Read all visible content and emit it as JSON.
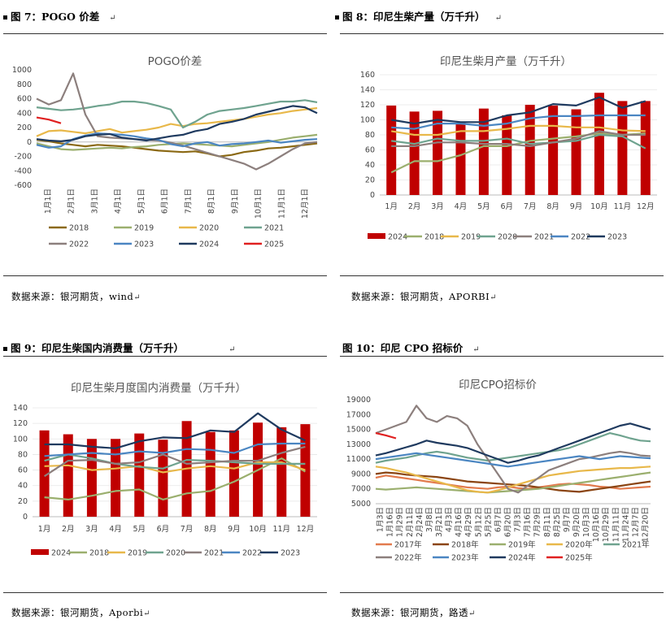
{
  "figures": [
    {
      "title": "图 7：POGO 价差",
      "source": "数据来源：银河期货，wind"
    },
    {
      "title": "图 8：印尼生柴产量（万千升）",
      "source": "数据来源：银河期货，APORBI"
    },
    {
      "title": "图 9：印尼生柴国内消费量（万千升）",
      "source": "数据来源：银河期货，Aporbi"
    },
    {
      "title": "图 10：印尼 CPO 招标价",
      "source": "数据来源：银河期货，路透"
    }
  ],
  "para_mark": "↵",
  "chart_data": [
    {
      "type": "line",
      "title": "POGO价差",
      "ylim": [
        -600,
        1000
      ],
      "yticks": [
        "1000",
        "800",
        "600",
        "400",
        "200",
        "0",
        "-200",
        "-400",
        "-600"
      ],
      "xticks": [
        "1月1日",
        "2月1日",
        "3月1日",
        "4月1日",
        "5月1日",
        "6月1日",
        "7月1日",
        "8月1日",
        "9月1日",
        "10月1日",
        "11月1日",
        "12月1日"
      ],
      "series": [
        {
          "name": "2018",
          "color": "#8B6914",
          "values": [
            30,
            10,
            -20,
            -40,
            -60,
            -40,
            -50,
            -60,
            -80,
            -100,
            -120,
            -130,
            -140,
            -130,
            -160,
            -200,
            -180,
            -140,
            -120,
            -90,
            -80,
            -60,
            -40,
            -20
          ]
        },
        {
          "name": "2019",
          "color": "#9BAF6E",
          "values": [
            -20,
            -60,
            -100,
            -110,
            -100,
            -90,
            -80,
            -90,
            -70,
            -60,
            -40,
            -30,
            -20,
            -30,
            -40,
            -50,
            -60,
            -40,
            -20,
            0,
            30,
            60,
            80,
            100
          ]
        },
        {
          "name": "2020",
          "color": "#E8B84A",
          "values": [
            80,
            150,
            160,
            140,
            120,
            150,
            180,
            130,
            150,
            170,
            200,
            250,
            220,
            250,
            260,
            280,
            300,
            320,
            350,
            380,
            400,
            430,
            450,
            470
          ]
        },
        {
          "name": "2021",
          "color": "#6FA38F",
          "values": [
            480,
            460,
            440,
            450,
            470,
            500,
            520,
            560,
            560,
            540,
            500,
            450,
            200,
            280,
            380,
            430,
            450,
            470,
            500,
            530,
            560,
            560,
            580,
            550
          ]
        },
        {
          "name": "2022",
          "color": "#8C7F7D",
          "values": [
            600,
            520,
            580,
            950,
            380,
            80,
            60,
            50,
            40,
            30,
            20,
            -10,
            -50,
            -100,
            -150,
            -200,
            -250,
            -300,
            -380,
            -300,
            -200,
            -100,
            -20,
            0
          ]
        },
        {
          "name": "2023",
          "color": "#4B86C2",
          "values": [
            -40,
            -80,
            -60,
            40,
            90,
            120,
            110,
            100,
            80,
            50,
            30,
            -30,
            -60,
            -20,
            0,
            -50,
            -30,
            -20,
            0,
            20,
            -10,
            10,
            30,
            40
          ]
        },
        {
          "name": "2024",
          "color": "#1F3A5F",
          "values": [
            40,
            20,
            10,
            30,
            80,
            100,
            110,
            60,
            40,
            20,
            50,
            80,
            100,
            150,
            180,
            250,
            280,
            320,
            380,
            420,
            460,
            500,
            480,
            400
          ]
        },
        {
          "name": "2025",
          "color": "#E02020",
          "values": [
            340,
            310,
            260
          ]
        }
      ]
    },
    {
      "type": "bar+line",
      "title": "印尼生柴月产量（万千升）",
      "ylim": [
        0,
        160
      ],
      "yticks": [
        "160",
        "140",
        "120",
        "100",
        "80",
        "60",
        "40",
        "20",
        "0"
      ],
      "categories": [
        "1月",
        "2月",
        "3月",
        "4月",
        "5月",
        "6月",
        "7月",
        "8月",
        "9月",
        "10月",
        "11月",
        "12月"
      ],
      "bar": {
        "name": "2024",
        "color": "#C00000",
        "values": [
          119,
          111,
          112,
          96,
          115,
          106,
          120,
          119,
          114,
          136,
          125,
          125
        ]
      },
      "series": [
        {
          "name": "2018",
          "color": "#9BAF6E",
          "values": [
            30,
            45,
            45,
            53,
            65,
            65,
            72,
            75,
            78,
            82,
            80,
            82
          ]
        },
        {
          "name": "2019",
          "color": "#E8B84A",
          "values": [
            85,
            80,
            80,
            85,
            85,
            88,
            92,
            92,
            90,
            90,
            86,
            85
          ]
        },
        {
          "name": "2020",
          "color": "#6FA38F",
          "values": [
            72,
            68,
            75,
            72,
            72,
            75,
            68,
            70,
            72,
            80,
            78,
            62
          ]
        },
        {
          "name": "2021",
          "color": "#8C7F7D",
          "values": [
            65,
            65,
            70,
            70,
            68,
            68,
            65,
            70,
            75,
            85,
            80,
            80
          ]
        },
        {
          "name": "2022",
          "color": "#4B86C2",
          "values": [
            90,
            88,
            95,
            95,
            92,
            95,
            102,
            105,
            105,
            106,
            106,
            106
          ]
        },
        {
          "name": "2023",
          "color": "#1F3A5F",
          "values": [
            100,
            95,
            100,
            97,
            97,
            106,
            110,
            121,
            119,
            130,
            116,
            125
          ]
        }
      ]
    },
    {
      "type": "bar+line",
      "title": "印尼生柴月度国内消费量（万千升）",
      "ylim": [
        0,
        140
      ],
      "yticks": [
        "140",
        "120",
        "100",
        "80",
        "60",
        "40",
        "20",
        "0"
      ],
      "categories": [
        "1月",
        "2月",
        "3月",
        "4月",
        "5月",
        "6月",
        "7月",
        "8月",
        "9月",
        "10月",
        "11月",
        "12月"
      ],
      "bar": {
        "name": "2024",
        "color": "#C00000",
        "values": [
          111,
          106,
          100,
          100,
          107,
          99,
          123,
          109,
          111,
          121,
          115,
          119
        ]
      },
      "series": [
        {
          "name": "2018",
          "color": "#9BAF6E",
          "values": [
            25,
            22,
            27,
            33,
            35,
            22,
            30,
            33,
            45,
            60,
            75,
            58
          ]
        },
        {
          "name": "2019",
          "color": "#E8B84A",
          "values": [
            65,
            66,
            60,
            62,
            65,
            57,
            62,
            65,
            62,
            70,
            70,
            60
          ]
        },
        {
          "name": "2020",
          "color": "#6FA38F",
          "values": [
            72,
            80,
            75,
            68,
            64,
            62,
            73,
            72,
            70,
            68,
            68,
            68
          ]
        },
        {
          "name": "2021",
          "color": "#8C7F7D",
          "values": [
            52,
            72,
            73,
            68,
            70,
            80,
            68,
            70,
            72,
            72,
            82,
            90
          ]
        },
        {
          "name": "2022",
          "color": "#4B86C2",
          "values": [
            78,
            80,
            82,
            80,
            84,
            82,
            87,
            86,
            82,
            93,
            94,
            94
          ]
        },
        {
          "name": "2023",
          "color": "#1F3A5F",
          "values": [
            93,
            93,
            90,
            88,
            97,
            102,
            101,
            111,
            109,
            133,
            112,
            98
          ]
        }
      ]
    },
    {
      "type": "line",
      "title": "印尼CPO招标价",
      "ylim": [
        5000,
        19000
      ],
      "yticks": [
        "19000",
        "17000",
        "15000",
        "13000",
        "11000",
        "9000",
        "7000",
        "5000"
      ],
      "xticks": [
        "1月3日",
        "1月16日",
        "1月29日",
        "2月11日",
        "2月24日",
        "3月8日",
        "3月21日",
        "4月3日",
        "4月16日",
        "4月29日",
        "5月12日",
        "5月25日",
        "6月7日",
        "6月20日",
        "7月3日",
        "7月16日",
        "7月29日",
        "8月11日",
        "8月25日",
        "9月7日",
        "9月20日",
        "10月3日",
        "10月16日",
        "10月29日",
        "11月11日",
        "11月24日",
        "12月7日",
        "12月20日"
      ],
      "series": [
        {
          "name": "2017年",
          "color": "#E27B4E",
          "values": [
            8500,
            8800,
            8600,
            8400,
            8200,
            8000,
            7800,
            7600,
            7400,
            7200,
            7100,
            7000,
            7200,
            7300,
            7100,
            7000,
            7200,
            7400,
            7600,
            7700,
            7600,
            7500,
            7300,
            7200,
            7000,
            7100,
            7200,
            7300
          ]
        },
        {
          "name": "2018年",
          "color": "#8B4513",
          "values": [
            9000,
            9200,
            9100,
            8900,
            8800,
            8700,
            8600,
            8400,
            8200,
            8000,
            7900,
            7800,
            7700,
            7600,
            7500,
            7400,
            7200,
            7000,
            6800,
            6700,
            6600,
            6800,
            7000,
            7200,
            7400,
            7600,
            7800,
            8000
          ]
        },
        {
          "name": "2019年",
          "color": "#9BAF6E",
          "values": [
            7000,
            6900,
            7000,
            7100,
            7200,
            7100,
            7000,
            6900,
            6800,
            6700,
            6600,
            6500,
            6600,
            6700,
            6800,
            6900,
            7000,
            7200,
            7400,
            7600,
            7800,
            8000,
            8200,
            8400,
            8600,
            8800,
            9000,
            9200
          ]
        },
        {
          "name": "2020年",
          "color": "#E8B84A",
          "values": [
            10000,
            9800,
            9500,
            9200,
            8800,
            8400,
            8000,
            7600,
            7200,
            6800,
            6600,
            6500,
            6800,
            7200,
            7600,
            8000,
            8400,
            8800,
            9000,
            9200,
            9400,
            9500,
            9600,
            9700,
            9800,
            9800,
            9900,
            10000
          ]
        },
        {
          "name": "2021年",
          "color": "#6FA38F",
          "values": [
            10500,
            10800,
            11000,
            11200,
            11500,
            11800,
            12000,
            11800,
            11500,
            11200,
            11000,
            10800,
            11000,
            11200,
            11400,
            11600,
            11800,
            12000,
            12200,
            12500,
            13000,
            13500,
            14000,
            14500,
            14200,
            13800,
            13500,
            13400
          ]
        },
        {
          "name": "2022年",
          "color": "#8C7F7D",
          "values": [
            14500,
            15000,
            15500,
            16000,
            18200,
            16500,
            16000,
            16800,
            16500,
            15500,
            13000,
            11000,
            9000,
            7000,
            6500,
            7500,
            8500,
            9500,
            10000,
            10500,
            11000,
            11200,
            11500,
            11800,
            12000,
            11800,
            11500,
            11400
          ]
        },
        {
          "name": "2023年",
          "color": "#4B86C2",
          "values": [
            11000,
            11200,
            11400,
            11600,
            11800,
            11600,
            11400,
            11200,
            11000,
            10800,
            10600,
            10400,
            10200,
            10000,
            10200,
            10400,
            10600,
            10800,
            11000,
            11200,
            11400,
            11200,
            11000,
            11200,
            11400,
            11300,
            11200,
            11100
          ]
        },
        {
          "name": "2024年",
          "color": "#1F3A5F",
          "values": [
            11500,
            11800,
            12200,
            12600,
            13000,
            13500,
            13200,
            13000,
            12800,
            12500,
            12000,
            11500,
            11000,
            10500,
            10800,
            11200,
            11500,
            12000,
            12500,
            13000,
            13500,
            14000,
            14500,
            15000,
            15500,
            15800,
            15400,
            15000
          ]
        },
        {
          "name": "2025年",
          "color": "#E02020",
          "values": [
            14500,
            14200,
            13800
          ]
        }
      ]
    }
  ]
}
